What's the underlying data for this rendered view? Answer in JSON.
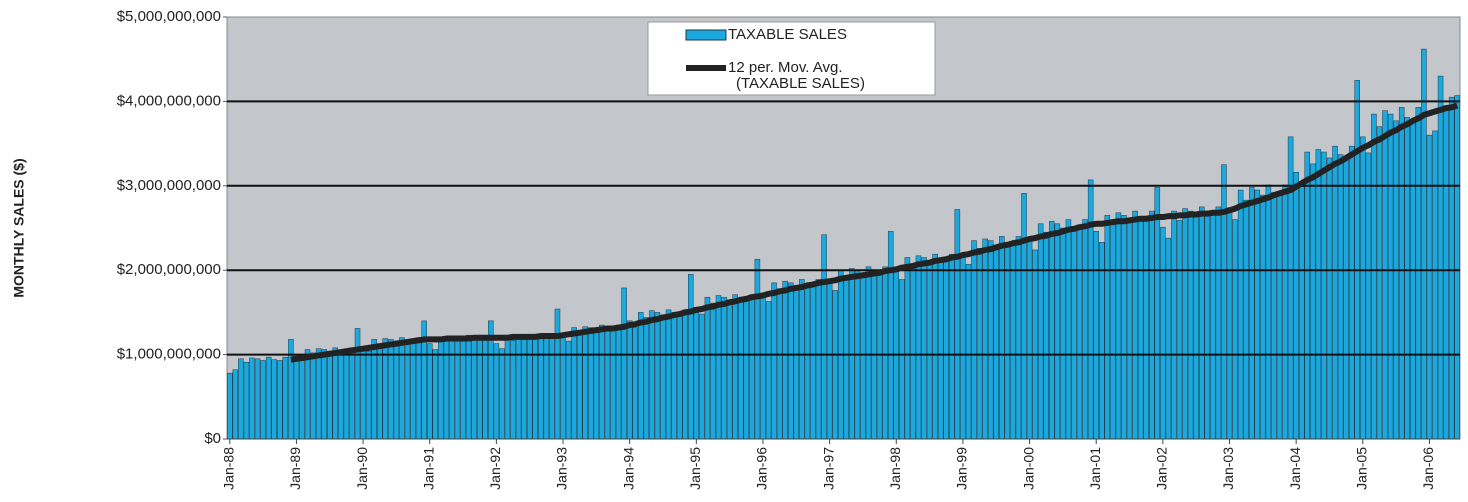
{
  "chart_data": {
    "type": "bar_line",
    "ylabel": "MONTHLY SALES ($)",
    "categories": [
      "Jan-88",
      null,
      null,
      null,
      null,
      null,
      null,
      null,
      null,
      null,
      null,
      null,
      "Jan-89",
      null,
      null,
      null,
      null,
      null,
      null,
      null,
      null,
      null,
      null,
      null,
      "Jan-90",
      null,
      null,
      null,
      null,
      null,
      null,
      null,
      null,
      null,
      null,
      null,
      "Jan-91",
      null,
      null,
      null,
      null,
      null,
      null,
      null,
      null,
      null,
      null,
      null,
      "Jan-92",
      null,
      null,
      null,
      null,
      null,
      null,
      null,
      null,
      null,
      null,
      null,
      "Jan-93",
      null,
      null,
      null,
      null,
      null,
      null,
      null,
      null,
      null,
      null,
      null,
      "Jan-94",
      null,
      null,
      null,
      null,
      null,
      null,
      null,
      null,
      null,
      null,
      null,
      "Jan-95",
      null,
      null,
      null,
      null,
      null,
      null,
      null,
      null,
      null,
      null,
      null,
      "Jan-96",
      null,
      null,
      null,
      null,
      null,
      null,
      null,
      null,
      null,
      null,
      null,
      "Jan-97",
      null,
      null,
      null,
      null,
      null,
      null,
      null,
      null,
      null,
      null,
      null,
      "Jan-98",
      null,
      null,
      null,
      null,
      null,
      null,
      null,
      null,
      null,
      null,
      null,
      "Jan-99",
      null,
      null,
      null,
      null,
      null,
      null,
      null,
      null,
      null,
      null,
      null,
      "Jan-00",
      null,
      null,
      null,
      null,
      null,
      null,
      null,
      null,
      null,
      null,
      null,
      "Jan-01",
      null,
      null,
      null,
      null,
      null,
      null,
      null,
      null,
      null,
      null,
      null,
      "Jan-02",
      null,
      null,
      null,
      null,
      null,
      null,
      null,
      null,
      null,
      null,
      null,
      "Jan-03",
      null,
      null,
      null,
      null,
      null,
      null,
      null,
      null,
      null,
      null,
      null,
      "Jan-04",
      null,
      null,
      null,
      null,
      null,
      null,
      null,
      null,
      null,
      null,
      null,
      "Jan-05",
      null,
      null,
      null,
      null,
      null,
      null,
      null,
      null,
      null,
      null,
      null,
      "Jan-06",
      null,
      null,
      null,
      null,
      null
    ],
    "series": [
      {
        "name": "TAXABLE SALES",
        "kind": "bar",
        "color": "#1ca8dc",
        "values": [
          780000000,
          820000000,
          950000000,
          910000000,
          960000000,
          950000000,
          930000000,
          970000000,
          940000000,
          930000000,
          970000000,
          1180000000,
          990000000,
          930000000,
          1060000000,
          1020000000,
          1070000000,
          1060000000,
          1040000000,
          1080000000,
          1050000000,
          1040000000,
          1080000000,
          1310000000,
          1100000000,
          1040000000,
          1180000000,
          1130000000,
          1190000000,
          1180000000,
          1160000000,
          1200000000,
          1170000000,
          1160000000,
          1200000000,
          1400000000,
          1130000000,
          1060000000,
          1210000000,
          1160000000,
          1220000000,
          1210000000,
          1190000000,
          1230000000,
          1200000000,
          1190000000,
          1230000000,
          1400000000,
          1130000000,
          1070000000,
          1220000000,
          1170000000,
          1230000000,
          1220000000,
          1200000000,
          1240000000,
          1210000000,
          1200000000,
          1240000000,
          1540000000,
          1230000000,
          1160000000,
          1320000000,
          1270000000,
          1330000000,
          1320000000,
          1290000000,
          1350000000,
          1310000000,
          1290000000,
          1350000000,
          1790000000,
          1400000000,
          1320000000,
          1500000000,
          1440000000,
          1520000000,
          1500000000,
          1470000000,
          1530000000,
          1490000000,
          1470000000,
          1530000000,
          1950000000,
          1560000000,
          1480000000,
          1680000000,
          1610000000,
          1700000000,
          1680000000,
          1650000000,
          1710000000,
          1660000000,
          1650000000,
          1710000000,
          2130000000,
          1720000000,
          1630000000,
          1850000000,
          1780000000,
          1870000000,
          1850000000,
          1810000000,
          1890000000,
          1830000000,
          1810000000,
          1890000000,
          2420000000,
          1860000000,
          1760000000,
          2000000000,
          1920000000,
          2020000000,
          2000000000,
          1960000000,
          2040000000,
          1980000000,
          1960000000,
          2040000000,
          2460000000,
          2000000000,
          1890000000,
          2150000000,
          2060000000,
          2170000000,
          2150000000,
          2110000000,
          2190000000,
          2130000000,
          2110000000,
          2190000000,
          2720000000,
          2190000000,
          2070000000,
          2350000000,
          2260000000,
          2370000000,
          2350000000,
          2300000000,
          2400000000,
          2330000000,
          2300000000,
          2400000000,
          2910000000,
          2370000000,
          2240000000,
          2550000000,
          2450000000,
          2580000000,
          2550000000,
          2500000000,
          2600000000,
          2520000000,
          2500000000,
          2600000000,
          3070000000,
          2460000000,
          2330000000,
          2650000000,
          2540000000,
          2680000000,
          2650000000,
          2600000000,
          2700000000,
          2620000000,
          2600000000,
          2700000000,
          2980000000,
          2510000000,
          2380000000,
          2700000000,
          2590000000,
          2730000000,
          2700000000,
          2650000000,
          2750000000,
          2670000000,
          2650000000,
          2750000000,
          3250000000,
          2740000000,
          2600000000,
          2950000000,
          2830000000,
          2980000000,
          2950000000,
          2890000000,
          3010000000,
          2920000000,
          2890000000,
          3010000000,
          3580000000,
          3160000000,
          2990000000,
          3400000000,
          3260000000,
          3430000000,
          3400000000,
          3330000000,
          3470000000,
          3370000000,
          3330000000,
          3470000000,
          4250000000,
          3580000000,
          3390000000,
          3850000000,
          3700000000,
          3890000000,
          3850000000,
          3770000000,
          3930000000,
          3810000000,
          3770000000,
          3930000000,
          4620000000,
          3600000000,
          3650000000,
          4300000000,
          3950000000,
          4050000000,
          4070000000
        ]
      },
      {
        "name": "12 per. Mov. Avg. (TAXABLE SALES)",
        "kind": "line",
        "color": "#222222",
        "values": [
          null,
          null,
          null,
          null,
          null,
          null,
          null,
          null,
          null,
          null,
          null,
          940000000,
          950000000,
          960000000,
          970000000,
          980000000,
          990000000,
          1000000000,
          1010000000,
          1020000000,
          1030000000,
          1040000000,
          1050000000,
          1060000000,
          1070000000,
          1080000000,
          1090000000,
          1100000000,
          1110000000,
          1120000000,
          1130000000,
          1140000000,
          1150000000,
          1160000000,
          1170000000,
          1180000000,
          1180000000,
          1180000000,
          1180000000,
          1190000000,
          1190000000,
          1190000000,
          1190000000,
          1190000000,
          1200000000,
          1200000000,
          1200000000,
          1200000000,
          1200000000,
          1200000000,
          1200000000,
          1210000000,
          1210000000,
          1210000000,
          1210000000,
          1210000000,
          1220000000,
          1220000000,
          1220000000,
          1220000000,
          1230000000,
          1240000000,
          1250000000,
          1260000000,
          1270000000,
          1280000000,
          1290000000,
          1300000000,
          1310000000,
          1310000000,
          1320000000,
          1330000000,
          1350000000,
          1360000000,
          1380000000,
          1390000000,
          1410000000,
          1420000000,
          1440000000,
          1450000000,
          1470000000,
          1480000000,
          1500000000,
          1510000000,
          1530000000,
          1540000000,
          1560000000,
          1570000000,
          1590000000,
          1600000000,
          1620000000,
          1630000000,
          1650000000,
          1660000000,
          1680000000,
          1690000000,
          1700000000,
          1720000000,
          1730000000,
          1750000000,
          1760000000,
          1780000000,
          1790000000,
          1800000000,
          1820000000,
          1830000000,
          1850000000,
          1860000000,
          1870000000,
          1880000000,
          1900000000,
          1910000000,
          1920000000,
          1930000000,
          1940000000,
          1950000000,
          1960000000,
          1970000000,
          1990000000,
          2000000000,
          2010000000,
          2030000000,
          2040000000,
          2050000000,
          2070000000,
          2080000000,
          2090000000,
          2110000000,
          2120000000,
          2130000000,
          2150000000,
          2160000000,
          2180000000,
          2190000000,
          2210000000,
          2220000000,
          2240000000,
          2250000000,
          2270000000,
          2290000000,
          2300000000,
          2320000000,
          2330000000,
          2350000000,
          2370000000,
          2380000000,
          2400000000,
          2410000000,
          2430000000,
          2440000000,
          2460000000,
          2480000000,
          2490000000,
          2510000000,
          2520000000,
          2540000000,
          2550000000,
          2550000000,
          2560000000,
          2570000000,
          2580000000,
          2580000000,
          2590000000,
          2600000000,
          2610000000,
          2610000000,
          2620000000,
          2630000000,
          2630000000,
          2640000000,
          2640000000,
          2650000000,
          2650000000,
          2660000000,
          2660000000,
          2670000000,
          2670000000,
          2680000000,
          2680000000,
          2690000000,
          2710000000,
          2730000000,
          2760000000,
          2780000000,
          2800000000,
          2820000000,
          2840000000,
          2860000000,
          2890000000,
          2910000000,
          2930000000,
          2950000000,
          2990000000,
          3030000000,
          3070000000,
          3100000000,
          3140000000,
          3180000000,
          3220000000,
          3260000000,
          3290000000,
          3330000000,
          3370000000,
          3410000000,
          3450000000,
          3480000000,
          3520000000,
          3550000000,
          3590000000,
          3630000000,
          3660000000,
          3700000000,
          3730000000,
          3770000000,
          3800000000,
          3840000000,
          3860000000,
          3880000000,
          3900000000,
          3920000000,
          3930000000,
          3950000000
        ]
      }
    ],
    "ylim": [
      0,
      5000000000
    ],
    "yticks": [
      {
        "value": 0,
        "label": "$0"
      },
      {
        "value": 1000000000,
        "label": "$1,000,000,000"
      },
      {
        "value": 2000000000,
        "label": "$2,000,000,000"
      },
      {
        "value": 3000000000,
        "label": "$3,000,000,000"
      },
      {
        "value": 4000000000,
        "label": "$4,000,000,000"
      },
      {
        "value": 5000000000,
        "label": "$5,000,000,000"
      }
    ],
    "grid": true,
    "legend": "top"
  }
}
